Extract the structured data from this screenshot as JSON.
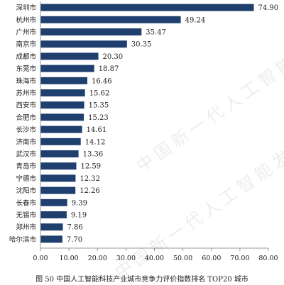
{
  "caption": "图 50   中国人工智能科技产业城市竞争力评价指数排名 TOP20 城市",
  "watermark": "中国新一代人工智能发展战略研究院",
  "colors": {
    "bar": "#1f3f6e",
    "axis": "#999999",
    "text": "#222222"
  },
  "chart_data": {
    "type": "bar",
    "orientation": "horizontal",
    "categories": [
      "深圳市",
      "杭州市",
      "广州市",
      "南京市",
      "成都市",
      "东莞市",
      "珠海市",
      "苏州市",
      "西安市",
      "合肥市",
      "长沙市",
      "济南市",
      "武汉市",
      "青岛市",
      "宁德市",
      "沈阳市",
      "长春市",
      "无锡市",
      "郑州市",
      "哈尔滨市"
    ],
    "values": [
      74.9,
      49.24,
      35.47,
      30.35,
      20.3,
      18.87,
      16.46,
      15.62,
      15.35,
      15.23,
      14.61,
      14.12,
      13.36,
      12.59,
      12.32,
      12.26,
      9.39,
      9.19,
      7.86,
      7.7
    ],
    "value_labels": [
      "74.90",
      "49.24",
      "35.47",
      "30.35",
      "20.30",
      "18.87",
      "16.46",
      "15.62",
      "15.35",
      "15.23",
      "14.61",
      "14.12",
      "13.36",
      "12.59",
      "12.32",
      "12.26",
      "9.39",
      "9.19",
      "7.86",
      "7.70"
    ],
    "xlim": [
      0,
      80
    ],
    "xticks": [
      0,
      10,
      20,
      30,
      40,
      50,
      60,
      70,
      80
    ],
    "xtick_labels": [
      "0.00",
      "10.00",
      "20.00",
      "30.00",
      "40.00",
      "50.00",
      "60.00",
      "70.00",
      "80.00"
    ],
    "grid": false,
    "legend": "none"
  }
}
